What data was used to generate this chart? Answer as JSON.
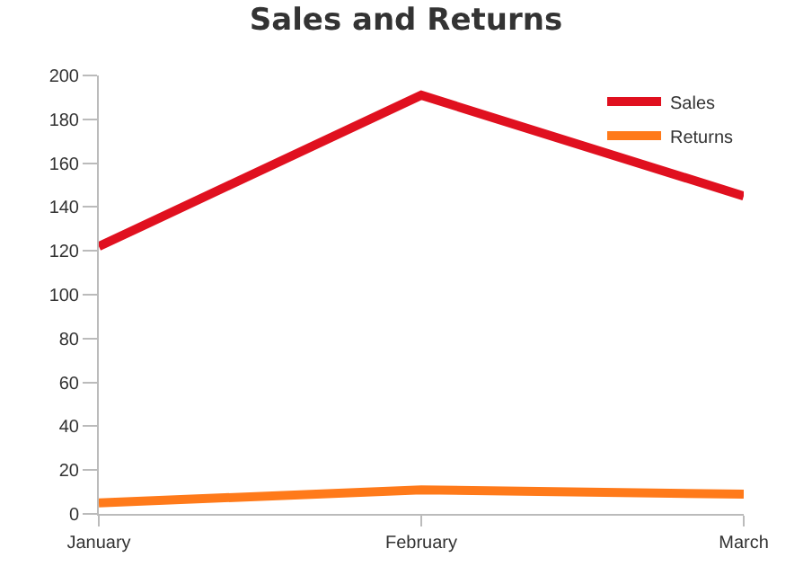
{
  "chart_data": {
    "type": "line",
    "title": "Sales and Returns",
    "categories": [
      "January",
      "February",
      "March"
    ],
    "series": [
      {
        "name": "Sales",
        "color": "#e0101f",
        "values": [
          122,
          191,
          145
        ]
      },
      {
        "name": "Returns",
        "color": "#ff7a1a",
        "values": [
          5,
          11,
          9
        ]
      }
    ],
    "ylim": [
      0,
      200
    ],
    "yticks": [
      0,
      20,
      40,
      60,
      80,
      100,
      120,
      140,
      160,
      180,
      200
    ],
    "legend": "top right",
    "line_style": "solid"
  }
}
